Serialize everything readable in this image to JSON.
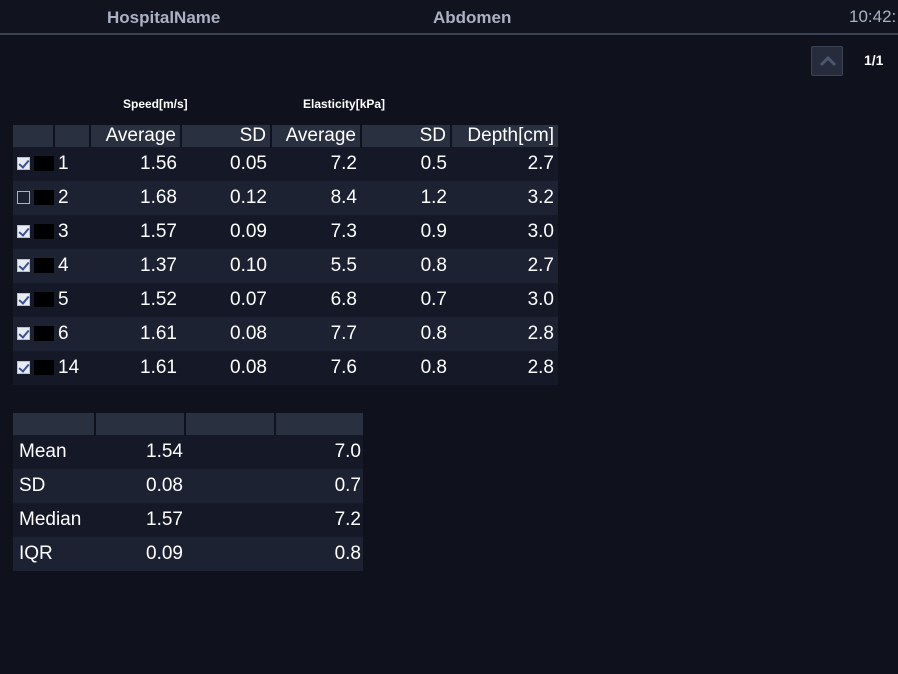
{
  "header": {
    "hospital_name": "HospitalName",
    "preset": "Abdomen",
    "clock": "10:42:"
  },
  "pager": {
    "up_icon": "chevron-up-icon",
    "page_indicator": "1/1"
  },
  "groups": {
    "speed_label": "Speed[m/s]",
    "elasticity_label": "Elasticity[kPa]"
  },
  "columns": {
    "speed_average": "Average",
    "speed_sd": "SD",
    "elasticity_average": "Average",
    "elasticity_sd": "SD",
    "depth": "Depth[cm]"
  },
  "measurements": [
    {
      "checked": true,
      "id": "1",
      "speed_avg": "1.56",
      "speed_sd": "0.05",
      "elast_avg": "7.2",
      "elast_sd": "0.5",
      "depth": "2.7"
    },
    {
      "checked": false,
      "id": "2",
      "speed_avg": "1.68",
      "speed_sd": "0.12",
      "elast_avg": "8.4",
      "elast_sd": "1.2",
      "depth": "3.2"
    },
    {
      "checked": true,
      "id": "3",
      "speed_avg": "1.57",
      "speed_sd": "0.09",
      "elast_avg": "7.3",
      "elast_sd": "0.9",
      "depth": "3.0"
    },
    {
      "checked": true,
      "id": "4",
      "speed_avg": "1.37",
      "speed_sd": "0.10",
      "elast_avg": "5.5",
      "elast_sd": "0.8",
      "depth": "2.7"
    },
    {
      "checked": true,
      "id": "5",
      "speed_avg": "1.52",
      "speed_sd": "0.07",
      "elast_avg": "6.8",
      "elast_sd": "0.7",
      "depth": "3.0"
    },
    {
      "checked": true,
      "id": "6",
      "speed_avg": "1.61",
      "speed_sd": "0.08",
      "elast_avg": "7.7",
      "elast_sd": "0.8",
      "depth": "2.8"
    },
    {
      "checked": true,
      "id": "14",
      "speed_avg": "1.61",
      "speed_sd": "0.08",
      "elast_avg": "7.6",
      "elast_sd": "0.8",
      "depth": "2.8"
    }
  ],
  "statistics": [
    {
      "label": "Mean",
      "speed": "1.54",
      "elasticity": "7.0"
    },
    {
      "label": "SD",
      "speed": "0.08",
      "elasticity": "0.7"
    },
    {
      "label": "Median",
      "speed": "1.57",
      "elasticity": "7.2"
    },
    {
      "label": "IQR",
      "speed": "0.09",
      "elasticity": "0.8"
    }
  ],
  "colors": {
    "background": "#0f121d",
    "header_cell": "#29303f",
    "row_odd": "#151927",
    "row_even": "#1d2232",
    "header_text": "#aab1c4"
  }
}
